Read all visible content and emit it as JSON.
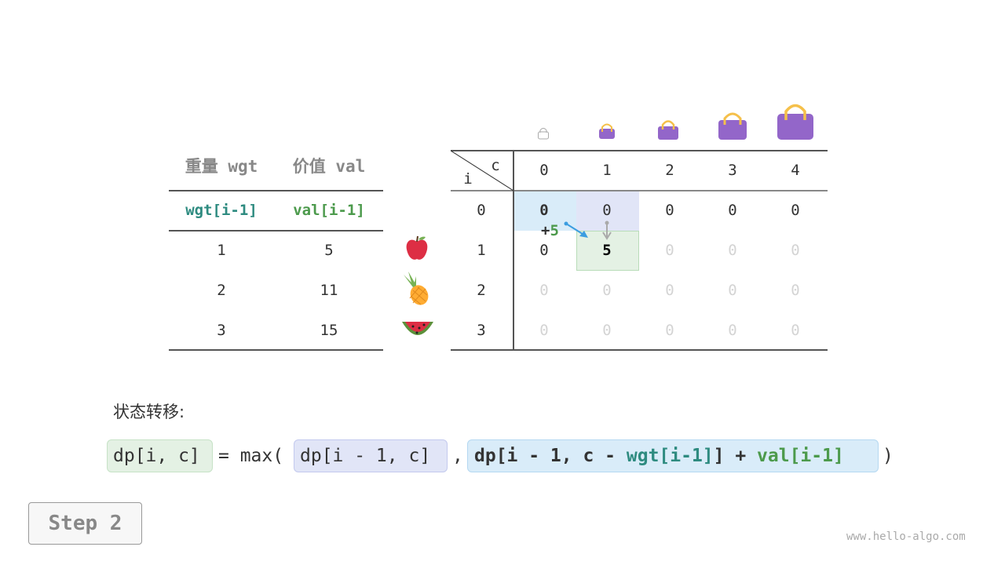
{
  "items_table": {
    "headers": [
      "重量 wgt",
      "价值 val"
    ],
    "subheaders": [
      "wgt[i-1]",
      "val[i-1]"
    ],
    "rows": [
      {
        "wgt": "1",
        "val": "5",
        "item": "apple"
      },
      {
        "wgt": "2",
        "val": "11",
        "item": "pineapple"
      },
      {
        "wgt": "3",
        "val": "15",
        "item": "watermelon"
      }
    ]
  },
  "dp_table": {
    "corner_c": "c",
    "corner_i": "i",
    "col_headers": [
      "0",
      "1",
      "2",
      "3",
      "4"
    ],
    "row_headers": [
      "0",
      "1",
      "2",
      "3"
    ],
    "cells": [
      [
        "0",
        "0",
        "0",
        "0",
        "0"
      ],
      [
        "0",
        "5",
        "0",
        "0",
        "0"
      ],
      [
        "0",
        "0",
        "0",
        "0",
        "0"
      ],
      [
        "0",
        "0",
        "0",
        "0",
        "0"
      ]
    ],
    "annotation": {
      "plus": "+",
      "value": "5"
    }
  },
  "colors": {
    "wgt": "#2e8b80",
    "val": "#4c9a4c",
    "bag": "#9366c9",
    "handle": "#f5c04a",
    "blue_cell": "#d9ecf9",
    "purple_cell": "#e1e5f7",
    "green_cell": "#e4f1e4"
  },
  "transition_label": "状态转移:",
  "formula": {
    "lhs": "dp[i, c]",
    "eq": "= max(",
    "opt1": "dp[i - 1, c]",
    "comma": ",",
    "opt2_a": "dp[i - 1, c - ",
    "opt2_wgt": "wgt[i-1]",
    "opt2_b": "] + ",
    "opt2_val": "val[i-1]",
    "close": ")"
  },
  "step_button": "Step 2",
  "watermark": "www.hello-algo.com"
}
